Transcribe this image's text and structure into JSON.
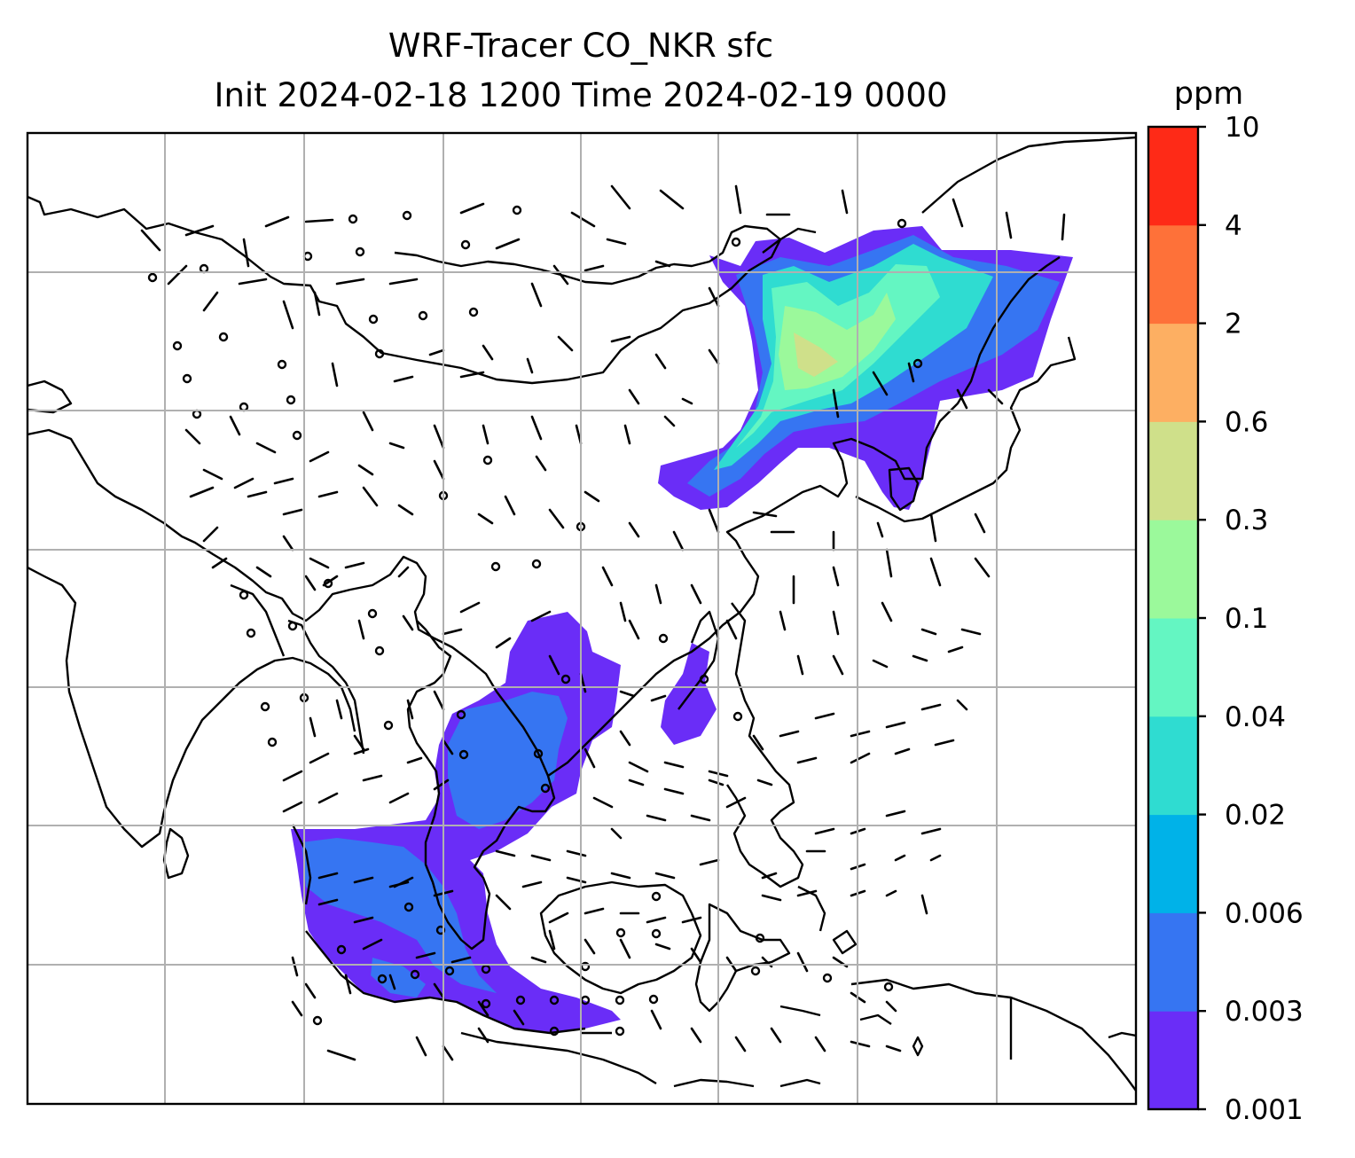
{
  "title_line1": "WRF-Tracer CO_NKR sfc",
  "title_line2": "Init 2024-02-18 1200 Time 2024-02-19 0000",
  "colorbar": {
    "unit": "ppm",
    "ticks": [
      "0.001",
      "0.003",
      "0.006",
      "0.02",
      "0.04",
      "0.1",
      "0.3",
      "0.6",
      "2",
      "4",
      "10"
    ],
    "colors": [
      "#6a2df7",
      "#3675f2",
      "#00b2e8",
      "#2fdcd1",
      "#64f6c2",
      "#9bf99b",
      "#cfe08a",
      "#fdaf62",
      "#fe7139",
      "#fe2a17"
    ]
  }
}
